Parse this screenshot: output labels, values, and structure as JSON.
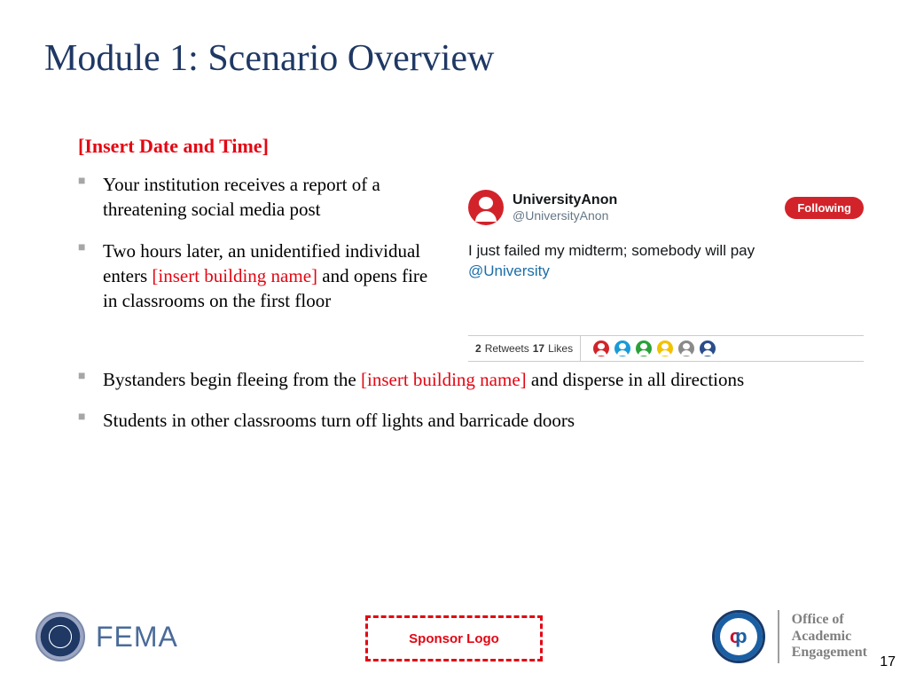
{
  "title": "Module 1: Scenario Overview",
  "placeholder_heading": "[Insert Date and Time]",
  "bullets_left": [
    {
      "pre": "Your institution receives a report of a threatening social media post",
      "red": "",
      "post": ""
    },
    {
      "pre": "Two hours later, an unidentified individual enters ",
      "red": "[insert building name]",
      "post": " and opens fire in classrooms on the first floor"
    }
  ],
  "bullets_full": [
    {
      "pre": "Bystanders begin fleeing from the ",
      "red": "[insert building name]",
      "post": " and disperse in all directions"
    },
    {
      "pre": "Students in other classrooms turn off lights and barricade doors",
      "red": "",
      "post": ""
    }
  ],
  "tweet": {
    "name": "UniversityAnon",
    "handle": "@UniversityAnon",
    "following": "Following",
    "body_text": "I just failed my midterm; somebody will pay",
    "mention": "@University",
    "retweets_count": "2",
    "retweets_label": "Retweets",
    "likes_count": "17",
    "likes_label": "Likes",
    "mini_avatar_colors": [
      "#d2232a",
      "#1a9bd7",
      "#2aa13a",
      "#f2c200",
      "#8a8a8a",
      "#2a4e8a"
    ]
  },
  "footer": {
    "fema": "FEMA",
    "sponsor": "Sponsor Logo",
    "office_lines": [
      "Office of",
      "Academic",
      "Engagement"
    ],
    "page": "17"
  },
  "colors": {
    "title": "#1f3864",
    "red": "#e30613",
    "bullet_marker": "#a6a6a6"
  }
}
